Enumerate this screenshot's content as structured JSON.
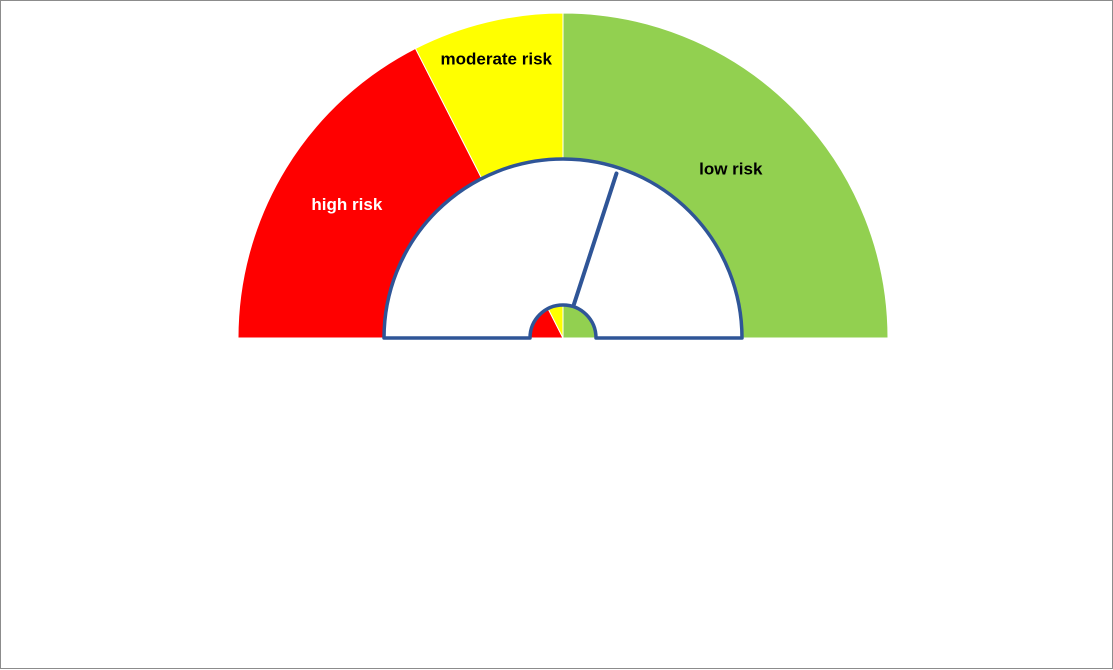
{
  "chart_data": {
    "type": "gauge",
    "range": [
      0,
      180
    ],
    "segments": [
      {
        "label": "high risk",
        "start": 0,
        "end": 63,
        "color": "#ff0000",
        "label_color": "#ffffff"
      },
      {
        "label": "moderate risk",
        "start": 63,
        "end": 90,
        "color": "#ffff00",
        "label_color": "#000000"
      },
      {
        "label": "low risk",
        "start": 90,
        "end": 180,
        "color": "#92d050",
        "label_color": "#000000"
      }
    ],
    "needle_value": 108,
    "needle_color": "#2f5597"
  }
}
